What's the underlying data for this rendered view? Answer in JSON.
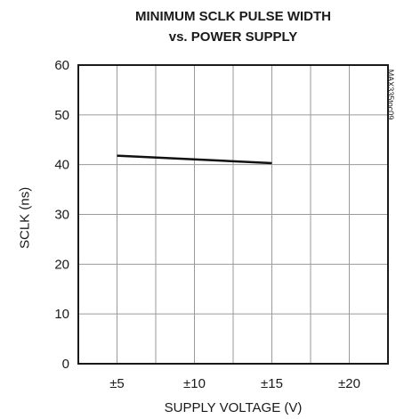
{
  "chart_data": {
    "type": "line",
    "title": "MINIMUM SCLK PULSE WIDTH",
    "subtitle": "vs. POWER SUPPLY",
    "xlabel": "SUPPLY VOLTAGE (V)",
    "ylabel": "SCLK (ns)",
    "x_tick_labels": [
      "±5",
      "±10",
      "±15",
      "±20"
    ],
    "x_ticks": [
      5,
      10,
      15,
      20
    ],
    "xlim": [
      2.5,
      22.5
    ],
    "y_ticks": [
      0,
      10,
      20,
      30,
      40,
      50,
      60
    ],
    "y_tick_labels": [
      "0",
      "10",
      "20",
      "30",
      "40",
      "50",
      "60"
    ],
    "ylim": [
      0,
      60
    ],
    "grid": true,
    "series": [
      {
        "x": [
          5,
          15
        ],
        "y": [
          41.8,
          40.3
        ]
      }
    ],
    "annotation": "MAX335toc09"
  }
}
